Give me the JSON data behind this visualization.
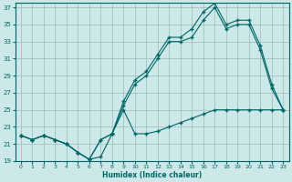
{
  "xlabel": "Humidex (Indice chaleur)",
  "background_color": "#cce8e8",
  "grid_color": "#99bbbb",
  "line_color": "#006666",
  "xlim": [
    -0.5,
    23.5
  ],
  "ylim": [
    19,
    37.5
  ],
  "xticks": [
    0,
    1,
    2,
    3,
    4,
    5,
    6,
    7,
    8,
    9,
    10,
    11,
    12,
    13,
    14,
    15,
    16,
    17,
    18,
    19,
    20,
    21,
    22,
    23
  ],
  "yticks": [
    19,
    21,
    23,
    25,
    27,
    29,
    31,
    33,
    35,
    37
  ],
  "line1_x": [
    0,
    1,
    2,
    3,
    4,
    5,
    6,
    7,
    8,
    9,
    10,
    11,
    12,
    13,
    14,
    15,
    16,
    17,
    18,
    19,
    20,
    21,
    22,
    23
  ],
  "line1_y": [
    22.0,
    21.5,
    22.0,
    21.5,
    21.0,
    20.0,
    19.2,
    19.5,
    22.2,
    25.0,
    22.2,
    22.2,
    22.5,
    23.0,
    23.5,
    24.0,
    24.5,
    25.0,
    25.0,
    25.0,
    25.0,
    25.0,
    25.0,
    25.0
  ],
  "line2_x": [
    0,
    1,
    2,
    3,
    4,
    5,
    6,
    7,
    8,
    9,
    10,
    11,
    12,
    13,
    14,
    15,
    16,
    17,
    18,
    19,
    20,
    21,
    22,
    23
  ],
  "line2_y": [
    22.0,
    21.5,
    22.0,
    21.5,
    21.0,
    20.0,
    19.2,
    21.5,
    22.2,
    25.5,
    28.0,
    29.0,
    31.0,
    33.0,
    33.0,
    33.5,
    35.5,
    37.0,
    34.5,
    35.0,
    35.0,
    32.0,
    27.5,
    25.0
  ],
  "line3_x": [
    0,
    1,
    2,
    3,
    4,
    5,
    6,
    7,
    8,
    9,
    10,
    11,
    12,
    13,
    14,
    15,
    16,
    17,
    18,
    19,
    20,
    21,
    22,
    23
  ],
  "line3_y": [
    22.0,
    21.5,
    22.0,
    21.5,
    21.0,
    20.0,
    19.2,
    21.5,
    22.2,
    26.0,
    28.5,
    29.5,
    31.5,
    33.5,
    33.5,
    34.5,
    36.5,
    37.5,
    35.0,
    35.5,
    35.5,
    32.5,
    28.0,
    25.0
  ],
  "marker": "+"
}
